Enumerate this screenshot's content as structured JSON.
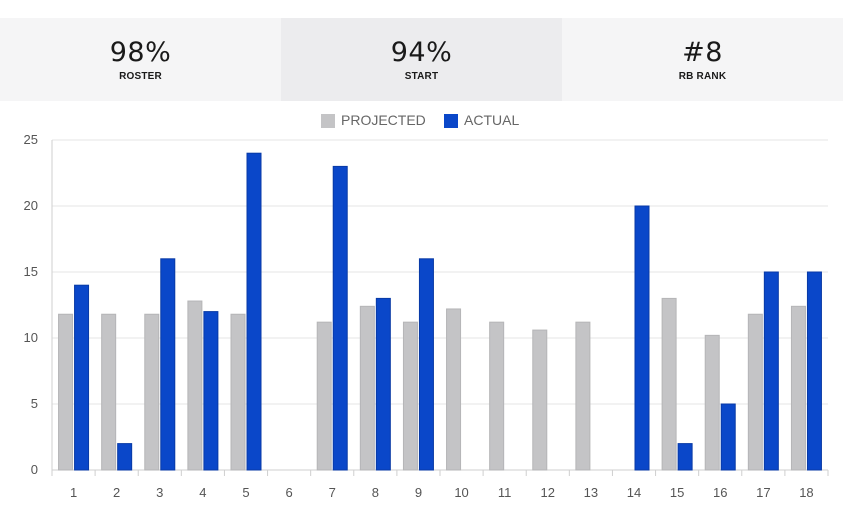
{
  "stats": [
    {
      "value": "98%",
      "label": "ROSTER"
    },
    {
      "value": "94%",
      "label": "START"
    },
    {
      "value": "#8",
      "label": "RB RANK"
    }
  ],
  "colors": {
    "projected": "#c4c4c6",
    "actual": "#0a47c9",
    "grid": "#e6e6e6",
    "axis": "#cfcfcf"
  },
  "chart_data": {
    "type": "bar",
    "categories": [
      "1",
      "2",
      "3",
      "4",
      "5",
      "6",
      "7",
      "8",
      "9",
      "10",
      "11",
      "12",
      "13",
      "14",
      "15",
      "16",
      "17",
      "18"
    ],
    "series": [
      {
        "name": "PROJECTED",
        "values": [
          11.8,
          11.8,
          11.8,
          12.8,
          11.8,
          0,
          11.2,
          12.4,
          11.2,
          12.2,
          11.2,
          10.6,
          11.2,
          0,
          13,
          10.2,
          11.8,
          12.4
        ]
      },
      {
        "name": "ACTUAL",
        "values": [
          14,
          2,
          16,
          12,
          24,
          0,
          23,
          13,
          16,
          0,
          0,
          0,
          0,
          20,
          2,
          5,
          15,
          15
        ]
      }
    ],
    "yticks": [
      0,
      5,
      10,
      15,
      20,
      25
    ],
    "ylim": [
      0,
      25
    ],
    "legend_position": "top-center",
    "grid": true
  }
}
